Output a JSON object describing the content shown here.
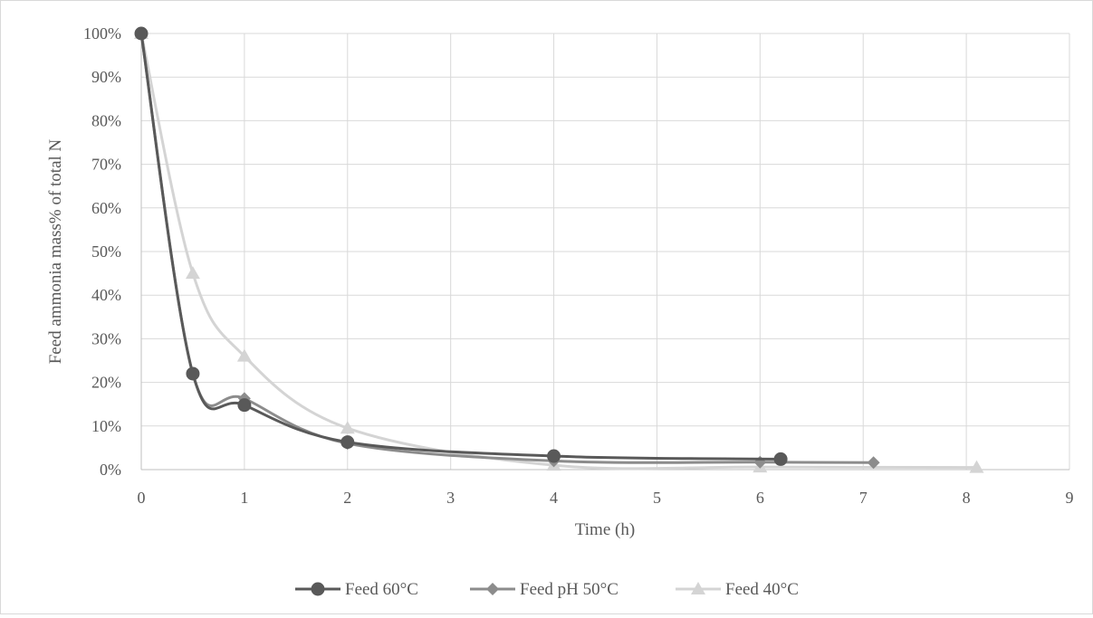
{
  "chart_data": {
    "type": "line",
    "title": "",
    "xlabel": "Time (h)",
    "ylabel": "Feed ammonia mass% of total N",
    "xlim": [
      0,
      9
    ],
    "ylim": [
      0,
      100
    ],
    "x_ticks": [
      "0",
      "1",
      "2",
      "3",
      "4",
      "5",
      "6",
      "7",
      "8",
      "9"
    ],
    "y_ticks": [
      "0%",
      "10%",
      "20%",
      "30%",
      "40%",
      "50%",
      "60%",
      "70%",
      "80%",
      "90%",
      "100%"
    ],
    "grid": true,
    "legend_position": "bottom",
    "series": [
      {
        "name": "Feed 60°C",
        "color": "#595959",
        "marker": "circle",
        "x": [
          0,
          0.5,
          1,
          2,
          4,
          6.2
        ],
        "y": [
          100,
          22,
          14.8,
          6.3,
          3.1,
          2.4
        ]
      },
      {
        "name": "Feed pH 50°C",
        "color": "#8c8c8c",
        "marker": "diamond",
        "x": [
          0,
          0.5,
          1,
          2,
          4,
          6,
          7.1
        ],
        "y": [
          100,
          22,
          16.3,
          6,
          2,
          1.7,
          1.6
        ]
      },
      {
        "name": "Feed 40°C",
        "color": "#d4d4d4",
        "marker": "triangle",
        "x": [
          0,
          0.5,
          1,
          2,
          4,
          6,
          8.1
        ],
        "y": [
          100,
          45,
          26,
          9.5,
          1,
          0.6,
          0.5
        ]
      }
    ]
  }
}
